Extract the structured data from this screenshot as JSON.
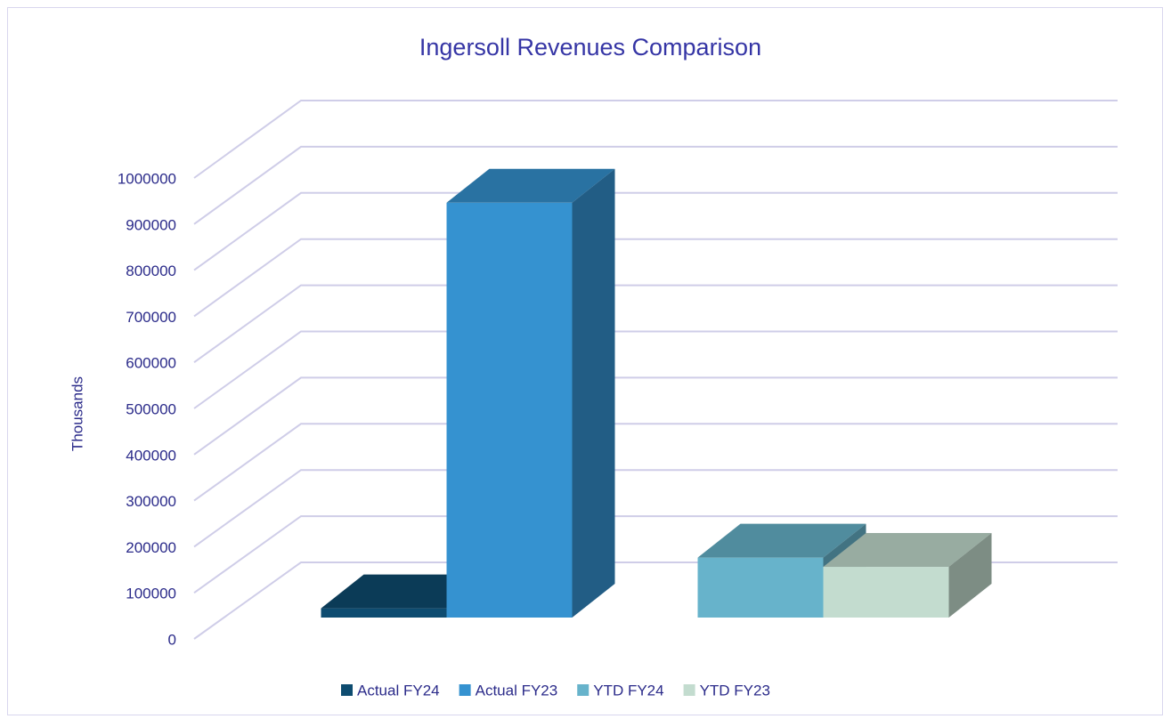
{
  "chart_data": {
    "type": "bar",
    "title": "Ingersoll Revenues Comparison",
    "y_label": "Thousands",
    "categories": [
      null,
      null
    ],
    "series": [
      {
        "name": "Actual FY24",
        "color": "#0e4c70",
        "values": [
          20000,
          null
        ]
      },
      {
        "name": "Actual FY23",
        "color": "#3592d0",
        "values": [
          900000,
          null
        ]
      },
      {
        "name": "YTD FY24",
        "color": "#67b3cb",
        "values": [
          null,
          130000
        ]
      },
      {
        "name": "YTD FY23",
        "color": "#c3dccf",
        "values": [
          null,
          110000
        ]
      }
    ],
    "ylim": [
      0,
      1000000
    ],
    "yticks": [
      0,
      100000,
      200000,
      300000,
      400000,
      500000,
      600000,
      700000,
      800000,
      900000,
      1000000
    ],
    "grid": true,
    "legend": "bottom"
  }
}
